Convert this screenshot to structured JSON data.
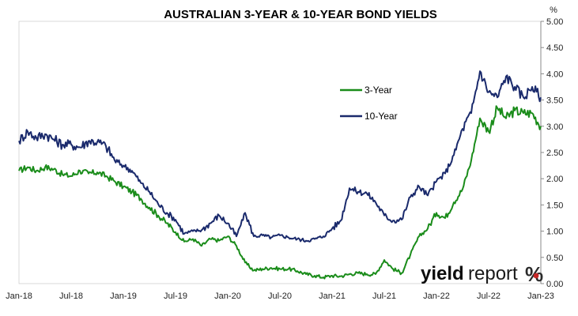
{
  "chart_data": {
    "type": "line",
    "title": "AUSTRALIAN 3-YEAR & 10-YEAR BOND YIELDS",
    "ylabel": "%",
    "ylim": [
      0,
      5
    ],
    "yticks": [
      "0.00",
      "0.50",
      "1.00",
      "1.50",
      "2.00",
      "2.50",
      "3.00",
      "3.50",
      "4.00",
      "4.50",
      "5.00"
    ],
    "xticks": [
      "Jan-18",
      "Jul-18",
      "Jan-19",
      "Jul-19",
      "Jan-20",
      "Jul-20",
      "Jan-21",
      "Jul-21",
      "Jan-22",
      "Jul-22",
      "Jan-23"
    ],
    "x_range": [
      "2018-01",
      "2023-01"
    ],
    "grid": false,
    "legend_position": "center-right",
    "series": [
      {
        "name": "3-Year",
        "color": "#1a8c1a",
        "x": [
          "2018-01",
          "2018-02",
          "2018-03",
          "2018-04",
          "2018-05",
          "2018-06",
          "2018-07",
          "2018-08",
          "2018-09",
          "2018-10",
          "2018-11",
          "2018-12",
          "2019-01",
          "2019-02",
          "2019-03",
          "2019-04",
          "2019-05",
          "2019-06",
          "2019-07",
          "2019-08",
          "2019-09",
          "2019-10",
          "2019-11",
          "2019-12",
          "2020-01",
          "2020-02",
          "2020-03",
          "2020-04",
          "2020-05",
          "2020-06",
          "2020-07",
          "2020-08",
          "2020-09",
          "2020-10",
          "2020-11",
          "2020-12",
          "2021-01",
          "2021-02",
          "2021-03",
          "2021-04",
          "2021-05",
          "2021-06",
          "2021-07",
          "2021-08",
          "2021-09",
          "2021-10",
          "2021-11",
          "2021-12",
          "2022-01",
          "2022-02",
          "2022-03",
          "2022-04",
          "2022-05",
          "2022-06",
          "2022-07",
          "2022-08",
          "2022-09",
          "2022-10",
          "2022-11",
          "2022-12",
          "2023-01"
        ],
        "y": [
          2.15,
          2.22,
          2.15,
          2.22,
          2.18,
          2.08,
          2.05,
          2.15,
          2.1,
          2.12,
          2.05,
          1.95,
          1.85,
          1.75,
          1.62,
          1.45,
          1.3,
          1.15,
          0.98,
          0.8,
          0.85,
          0.72,
          0.85,
          0.82,
          0.9,
          0.72,
          0.4,
          0.25,
          0.28,
          0.3,
          0.28,
          0.28,
          0.24,
          0.18,
          0.15,
          0.12,
          0.15,
          0.14,
          0.18,
          0.2,
          0.18,
          0.18,
          0.45,
          0.28,
          0.2,
          0.55,
          0.9,
          1.05,
          1.35,
          1.25,
          1.55,
          1.8,
          2.35,
          3.15,
          2.9,
          3.35,
          3.15,
          3.3,
          3.25,
          3.25,
          3.0
        ]
      },
      {
        "name": "10-Year",
        "color": "#1a2a6c",
        "x": [
          "2018-01",
          "2018-02",
          "2018-03",
          "2018-04",
          "2018-05",
          "2018-06",
          "2018-07",
          "2018-08",
          "2018-09",
          "2018-10",
          "2018-11",
          "2018-12",
          "2019-01",
          "2019-02",
          "2019-03",
          "2019-04",
          "2019-05",
          "2019-06",
          "2019-07",
          "2019-08",
          "2019-09",
          "2019-10",
          "2019-11",
          "2019-12",
          "2020-01",
          "2020-02",
          "2020-03",
          "2020-04",
          "2020-05",
          "2020-06",
          "2020-07",
          "2020-08",
          "2020-09",
          "2020-10",
          "2020-11",
          "2020-12",
          "2021-01",
          "2021-02",
          "2021-03",
          "2021-04",
          "2021-05",
          "2021-06",
          "2021-07",
          "2021-08",
          "2021-09",
          "2021-10",
          "2021-11",
          "2021-12",
          "2022-01",
          "2022-02",
          "2022-03",
          "2022-04",
          "2022-05",
          "2022-06",
          "2022-07",
          "2022-08",
          "2022-09",
          "2022-10",
          "2022-11",
          "2022-12",
          "2023-01"
        ],
        "y": [
          2.72,
          2.9,
          2.78,
          2.85,
          2.75,
          2.65,
          2.65,
          2.6,
          2.72,
          2.7,
          2.62,
          2.35,
          2.25,
          2.15,
          1.92,
          1.75,
          1.52,
          1.35,
          1.22,
          0.95,
          1.0,
          1.02,
          1.15,
          1.3,
          1.15,
          0.9,
          1.35,
          0.9,
          0.92,
          0.88,
          0.92,
          0.88,
          0.85,
          0.82,
          0.85,
          0.9,
          1.05,
          1.2,
          1.82,
          1.75,
          1.72,
          1.55,
          1.3,
          1.2,
          1.22,
          1.65,
          1.85,
          1.68,
          1.95,
          2.1,
          2.45,
          2.95,
          3.25,
          4.05,
          3.65,
          3.55,
          3.95,
          3.75,
          3.55,
          3.75,
          3.55
        ]
      }
    ]
  },
  "watermark": {
    "bold_text": "yield",
    "light_text": "report",
    "symbol": "%",
    "colors": {
      "symbol": "#2a2a2a",
      "dot": "#c62828"
    }
  }
}
